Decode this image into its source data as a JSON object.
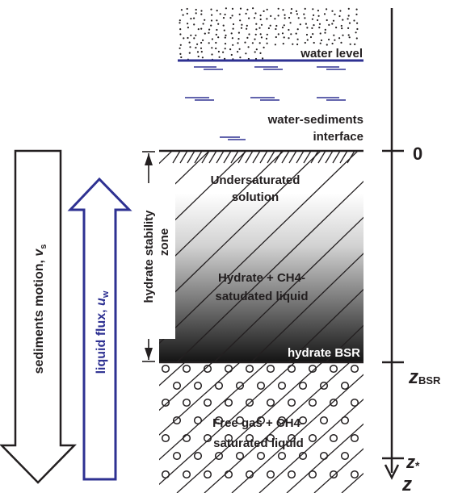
{
  "labels": {
    "water_level": "water level",
    "interface_line1": "water-sediments",
    "interface_line2": "interface",
    "undersat_line1": "Undersaturated",
    "undersat_line2": "solution",
    "hydrate_line1": "Hydrate + CH4-",
    "hydrate_line2": "satudated liquid",
    "bsr_label": "hydrate BSR",
    "freegas_line1": "Free gas + CH4-",
    "freegas_line2": "saturated liquid",
    "stability_line1": "hydrate stability",
    "stability_line2": "zone",
    "sediments_motion": "sediments motion, ",
    "sediments_motion_var": "v",
    "sediments_motion_sub": "s",
    "liquid_flux": "liquid flux, ",
    "liquid_flux_var": "u",
    "liquid_flux_sub": "w"
  },
  "axis": {
    "zero": "0",
    "z_bsr": "z",
    "z_bsr_sub": "BSR",
    "z_star": "z",
    "z_star_sub": "*",
    "z": "z"
  },
  "colors": {
    "ink": "#231f20",
    "water_lines": "#2e3192",
    "flux_arrow": "#2e3192",
    "gradient_top": "#ffffff",
    "gradient_bottom": "#1a1a1a"
  }
}
